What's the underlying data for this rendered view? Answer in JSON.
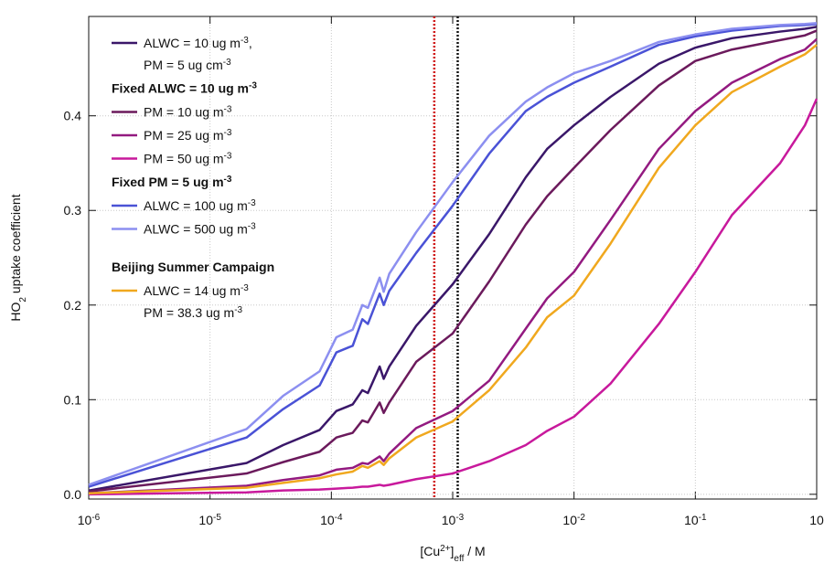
{
  "chart_data": {
    "type": "line",
    "x_label": [
      {
        "text": "[Cu"
      },
      {
        "text": "2+",
        "script": "sup"
      },
      {
        "text": "]"
      },
      {
        "text": "eff",
        "script": "sub"
      },
      {
        "text": " / M"
      }
    ],
    "y_label": [
      {
        "text": "HO"
      },
      {
        "text": "2",
        "script": "sub"
      },
      {
        "text": " uptake coefficient"
      }
    ],
    "log_x": true,
    "grid": true,
    "xlim": [
      1e-06,
      1
    ],
    "ylim": [
      -0.005,
      0.505
    ],
    "xticks": [
      {
        "value": 1e-06,
        "label": "10",
        "sup": "-6"
      },
      {
        "value": 1e-05,
        "label": "10",
        "sup": "-5"
      },
      {
        "value": 0.0001,
        "label": "10",
        "sup": "-4"
      },
      {
        "value": 0.001,
        "label": "10",
        "sup": "-3"
      },
      {
        "value": 0.01,
        "label": "10",
        "sup": "-2"
      },
      {
        "value": 0.1,
        "label": "10",
        "sup": "-1"
      },
      {
        "value": 1,
        "label": "10"
      }
    ],
    "yticks": [
      {
        "value": 0,
        "label": "0.0"
      },
      0.1,
      0.2,
      0.3,
      0.4
    ],
    "vlines": [
      {
        "x": 0.000705,
        "color": "#d01818"
      },
      {
        "x": 0.0011,
        "color": "#111111"
      }
    ],
    "legend_headings": [
      [
        {
          "text": "Fixed ALWC = 10 ug m"
        },
        {
          "text": "-3",
          "script": "sup"
        }
      ],
      [
        {
          "text": "Fixed PM =  5 ug m"
        },
        {
          "text": "-3",
          "script": "sup"
        }
      ],
      [
        {
          "text": "Beijing Summer Campaign"
        }
      ]
    ],
    "x": [
      1e-06,
      2e-05,
      4e-05,
      8e-05,
      0.00011,
      0.00015,
      0.00018,
      0.0002,
      0.00025,
      0.00027,
      0.0003,
      0.0005,
      0.001,
      0.002,
      0.004,
      0.006,
      0.01,
      0.02,
      0.05,
      0.1,
      0.2,
      0.5,
      0.8,
      1
    ],
    "series": [
      {
        "name": [
          [
            {
              "text": "ALWC = 10 ug m"
            },
            {
              "text": "-3",
              "script": "sup"
            },
            {
              "text": ","
            }
          ],
          [
            {
              "text": "PM = 5 ug cm"
            },
            {
              "text": "-3",
              "script": "sup"
            }
          ]
        ],
        "color": "#3a1769",
        "values": [
          0.004,
          0.033,
          0.052,
          0.068,
          0.088,
          0.095,
          0.11,
          0.107,
          0.135,
          0.122,
          0.135,
          0.178,
          0.222,
          0.275,
          0.335,
          0.365,
          0.39,
          0.42,
          0.455,
          0.472,
          0.482,
          0.489,
          0.492,
          0.494
        ]
      },
      {
        "name": [
          [
            {
              "text": "PM =  10 ug m"
            },
            {
              "text": "-3",
              "script": "sup"
            }
          ]
        ],
        "color": "#6b1a5c",
        "values": [
          0.003,
          0.022,
          0.034,
          0.045,
          0.06,
          0.065,
          0.078,
          0.076,
          0.097,
          0.086,
          0.097,
          0.14,
          0.17,
          0.225,
          0.285,
          0.315,
          0.345,
          0.385,
          0.432,
          0.458,
          0.47,
          0.48,
          0.485,
          0.49
        ]
      },
      {
        "name": [
          [
            {
              "text": "PM = 25 ug m"
            },
            {
              "text": "-3",
              "script": "sup"
            }
          ]
        ],
        "color": "#931a80",
        "values": [
          0.001,
          0.009,
          0.015,
          0.02,
          0.026,
          0.028,
          0.033,
          0.032,
          0.04,
          0.035,
          0.043,
          0.07,
          0.088,
          0.12,
          0.175,
          0.207,
          0.235,
          0.29,
          0.365,
          0.405,
          0.435,
          0.46,
          0.47,
          0.481
        ]
      },
      {
        "name": [
          [
            {
              "text": "PM = 50 ug m"
            },
            {
              "text": "-3",
              "script": "sup"
            }
          ]
        ],
        "color": "#c8199c",
        "values": [
          0,
          0.002,
          0.004,
          0.005,
          0.006,
          0.007,
          0.008,
          0.008,
          0.01,
          0.009,
          0.01,
          0.016,
          0.022,
          0.035,
          0.052,
          0.067,
          0.082,
          0.117,
          0.18,
          0.235,
          0.295,
          0.35,
          0.39,
          0.418
        ]
      },
      {
        "name": [
          [
            {
              "text": "ALWC = 100 ug m"
            },
            {
              "text": "-3",
              "script": "sup"
            }
          ]
        ],
        "color": "#4a52d6",
        "values": [
          0.008,
          0.06,
          0.09,
          0.115,
          0.15,
          0.157,
          0.185,
          0.18,
          0.212,
          0.2,
          0.215,
          0.255,
          0.305,
          0.36,
          0.405,
          0.42,
          0.435,
          0.452,
          0.475,
          0.484,
          0.49,
          0.495,
          0.496,
          0.497
        ]
      },
      {
        "name": [
          [
            {
              "text": "ALWC = 500 ug m"
            },
            {
              "text": "-3",
              "script": "sup"
            }
          ]
        ],
        "color": "#8c8ff0",
        "values": [
          0.01,
          0.069,
          0.104,
          0.13,
          0.166,
          0.174,
          0.2,
          0.197,
          0.229,
          0.214,
          0.233,
          0.277,
          0.33,
          0.379,
          0.415,
          0.43,
          0.445,
          0.458,
          0.478,
          0.486,
          0.492,
          0.496,
          0.497,
          0.498
        ]
      },
      {
        "name": [
          [
            {
              "text": "ALWC = 14 ug m"
            },
            {
              "text": "-3",
              "script": "sup"
            }
          ],
          [
            {
              "text": "PM = 38.3 ug m"
            },
            {
              "text": "-3",
              "script": "sup"
            }
          ]
        ],
        "color": "#f0a81e",
        "values": [
          0.001,
          0.007,
          0.012,
          0.017,
          0.021,
          0.024,
          0.03,
          0.028,
          0.035,
          0.031,
          0.038,
          0.06,
          0.077,
          0.11,
          0.155,
          0.187,
          0.21,
          0.265,
          0.345,
          0.39,
          0.425,
          0.452,
          0.465,
          0.475
        ]
      }
    ]
  }
}
